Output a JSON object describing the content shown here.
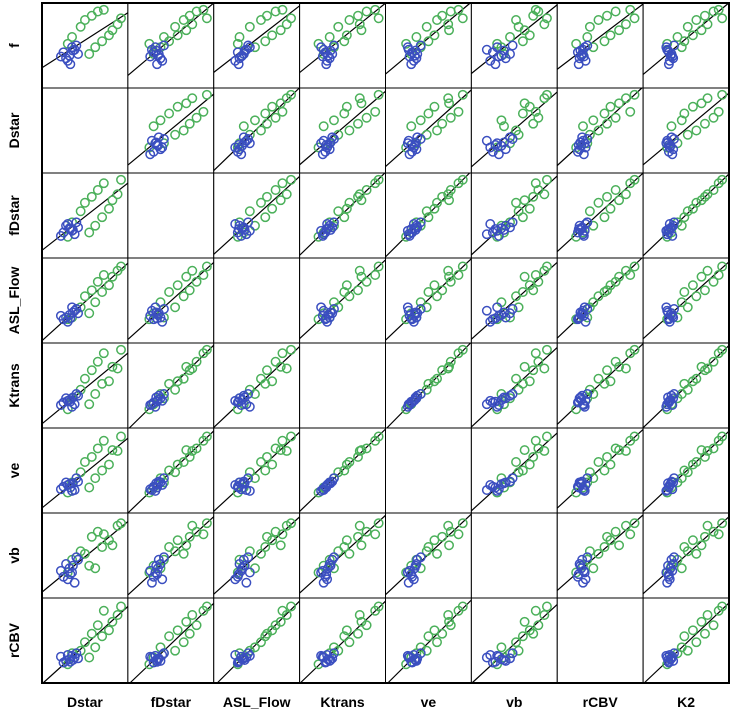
{
  "chart_data": {
    "type": "scatter",
    "subtype": "scatterplot-matrix",
    "title": "",
    "row_variables": [
      "f",
      "Dstar",
      "fDstar",
      "ASL_Flow",
      "Ktrans",
      "ve",
      "vb",
      "rCBV"
    ],
    "col_variables": [
      "Dstar",
      "fDstar",
      "ASL_Flow",
      "Ktrans",
      "ve",
      "vb",
      "rCBV",
      "K2"
    ],
    "variables": [
      "f",
      "Dstar",
      "fDstar",
      "ASL_Flow",
      "Ktrans",
      "ve",
      "vb",
      "rCBV",
      "K2"
    ],
    "diagonal_cells_empty": true,
    "legend": "none",
    "axes": {
      "ticks": "none",
      "normalized_range": [
        0,
        1
      ]
    },
    "marker": {
      "shape": "open-circle",
      "radius_px": 4.2,
      "stroke_px": 1.5
    },
    "colors": {
      "green_group": "#4bb05a",
      "blue_group": "#3b4fc0",
      "fit_line": "#000000",
      "cell_border": "#000000",
      "outer_border": "#000000",
      "background": "#ffffff",
      "label_text": "#000000"
    },
    "fit_line": {
      "type": "linear-regression",
      "per_cell": true
    },
    "groups": [
      {
        "name": "green-group",
        "color": "#4bb05a",
        "n": 14,
        "values": [
          [
            0.52,
            0.3,
            0.25,
            0.28,
            0.22,
            0.24,
            0.3,
            0.22,
            0.28
          ],
          [
            0.4,
            0.55,
            0.3,
            0.35,
            0.28,
            0.3,
            0.38,
            0.3,
            0.33
          ],
          [
            0.6,
            0.35,
            0.42,
            0.3,
            0.35,
            0.36,
            0.45,
            0.35,
            0.4
          ],
          [
            0.48,
            0.62,
            0.38,
            0.48,
            0.4,
            0.41,
            0.35,
            0.42,
            0.45
          ],
          [
            0.72,
            0.45,
            0.55,
            0.42,
            0.45,
            0.48,
            0.55,
            0.38,
            0.52
          ],
          [
            0.55,
            0.7,
            0.48,
            0.6,
            0.52,
            0.5,
            0.6,
            0.55,
            0.48
          ],
          [
            0.8,
            0.5,
            0.65,
            0.55,
            0.58,
            0.6,
            0.52,
            0.48,
            0.62
          ],
          [
            0.62,
            0.78,
            0.58,
            0.68,
            0.55,
            0.57,
            0.68,
            0.62,
            0.58
          ],
          [
            0.85,
            0.58,
            0.72,
            0.62,
            0.68,
            0.66,
            0.72,
            0.58,
            0.72
          ],
          [
            0.68,
            0.82,
            0.68,
            0.78,
            0.72,
            0.74,
            0.62,
            0.72,
            0.68
          ],
          [
            0.9,
            0.65,
            0.8,
            0.72,
            0.78,
            0.76,
            0.78,
            0.68,
            0.82
          ],
          [
            0.75,
            0.88,
            0.75,
            0.85,
            0.7,
            0.73,
            0.85,
            0.8,
            0.75
          ],
          [
            0.92,
            0.72,
            0.88,
            0.8,
            0.88,
            0.85,
            0.75,
            0.85,
            0.88
          ],
          [
            0.82,
            0.92,
            0.92,
            0.9,
            0.92,
            0.9,
            0.88,
            0.9,
            0.92
          ]
        ]
      },
      {
        "name": "blue-group",
        "color": "#3b4fc0",
        "n": 11,
        "values": [
          [
            0.42,
            0.25,
            0.3,
            0.28,
            0.3,
            0.31,
            0.25,
            0.24,
            0.3
          ],
          [
            0.38,
            0.32,
            0.35,
            0.33,
            0.33,
            0.34,
            0.35,
            0.28,
            0.32
          ],
          [
            0.45,
            0.38,
            0.28,
            0.38,
            0.28,
            0.27,
            0.18,
            0.3,
            0.28
          ],
          [
            0.35,
            0.28,
            0.38,
            0.3,
            0.35,
            0.36,
            0.4,
            0.26,
            0.35
          ],
          [
            0.48,
            0.35,
            0.32,
            0.42,
            0.25,
            0.26,
            0.3,
            0.32,
            0.27
          ],
          [
            0.4,
            0.42,
            0.36,
            0.35,
            0.38,
            0.37,
            0.45,
            0.29,
            0.33
          ],
          [
            0.32,
            0.3,
            0.4,
            0.25,
            0.32,
            0.33,
            0.22,
            0.33,
            0.31
          ],
          [
            0.44,
            0.36,
            0.33,
            0.36,
            0.36,
            0.35,
            0.38,
            0.27,
            0.29
          ],
          [
            0.37,
            0.22,
            0.26,
            0.32,
            0.27,
            0.28,
            0.32,
            0.31,
            0.34
          ],
          [
            0.5,
            0.4,
            0.42,
            0.4,
            0.4,
            0.41,
            0.48,
            0.35,
            0.36
          ],
          [
            0.28,
            0.33,
            0.34,
            0.29,
            0.31,
            0.3,
            0.28,
            0.25,
            0.3
          ]
        ]
      }
    ]
  }
}
